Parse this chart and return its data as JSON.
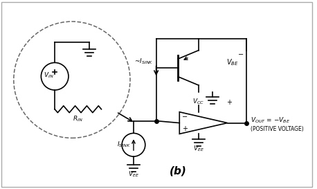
{
  "background_color": "#ffffff",
  "border_color": "#aaaaaa",
  "title": "(b)",
  "fig_width": 4.58,
  "fig_height": 2.73,
  "dpi": 100,
  "line_color": "#000000",
  "line_width": 1.2
}
